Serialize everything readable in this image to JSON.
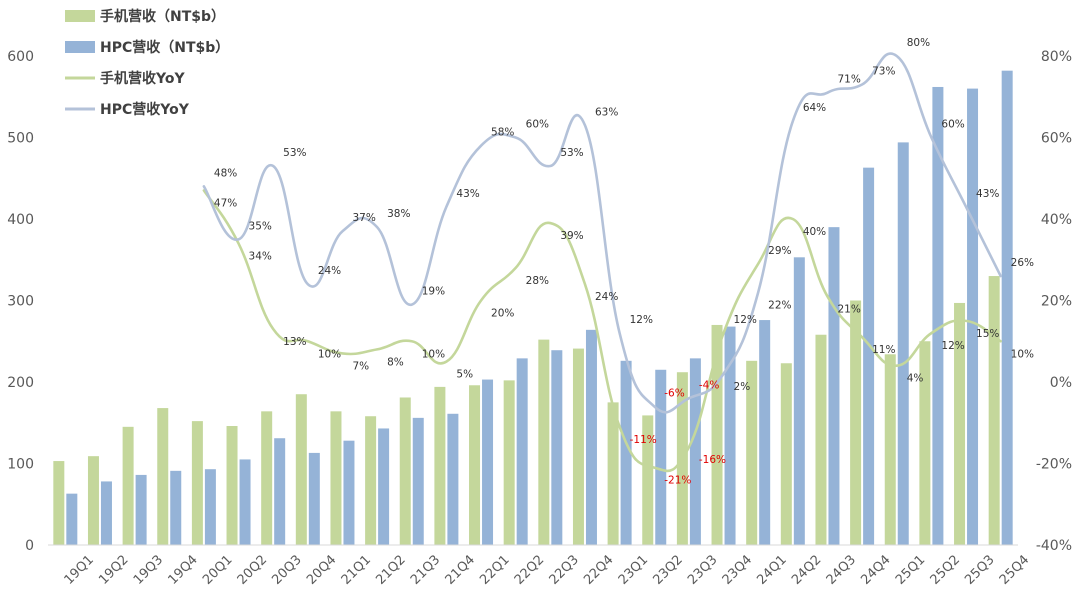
{
  "chart_data": {
    "type": "bar+line",
    "categories": [
      "19Q1",
      "19Q2",
      "19Q3",
      "19Q4",
      "20Q1",
      "20Q2",
      "20Q3",
      "20Q4",
      "21Q1",
      "21Q2",
      "21Q3",
      "21Q4",
      "22Q1",
      "22Q2",
      "22Q3",
      "22Q4",
      "23Q1",
      "23Q2",
      "23Q3",
      "23Q4",
      "24Q1",
      "24Q2",
      "24Q3",
      "24Q4",
      "25Q1",
      "25Q2",
      "25Q3",
      "25Q4"
    ],
    "bar_series": [
      {
        "name": "手机营收（NT$b）",
        "color": "#c4d79b",
        "values": [
          103,
          109,
          145,
          168,
          152,
          146,
          164,
          185,
          164,
          158,
          181,
          194,
          196,
          202,
          252,
          241,
          175,
          159,
          212,
          270,
          226,
          223,
          258,
          300,
          234,
          250,
          297,
          330
        ]
      },
      {
        "name": "HPC营收（NT$b）",
        "color": "#95b3d7",
        "values": [
          63,
          78,
          86,
          91,
          93,
          105,
          131,
          113,
          128,
          143,
          156,
          161,
          203,
          229,
          239,
          264,
          226,
          215,
          229,
          268,
          276,
          353,
          390,
          463,
          494,
          562,
          560,
          582
        ]
      }
    ],
    "line_series": [
      {
        "name": "手机营收YoY",
        "color": "#c4d79b",
        "start_index": 4,
        "values": [
          47,
          34,
          13,
          10,
          7,
          8,
          10,
          5,
          20,
          28,
          39,
          24,
          -11,
          -21,
          -16,
          12,
          29,
          40,
          21,
          11,
          4,
          12,
          15,
          10
        ],
        "labels": [
          "47%",
          "34%",
          "13%",
          "10%",
          "7%",
          "8%",
          "10%",
          "5%",
          "20%",
          "28%",
          "39%",
          "24%",
          "-11%",
          "-21%",
          "-16%",
          "12%",
          "29%",
          "40%",
          "21%",
          "11%",
          "4%",
          "12%",
          "15%",
          "10%"
        ]
      },
      {
        "name": "HPC营收YoY",
        "color": "#b4c2d9",
        "start_index": 4,
        "values": [
          48,
          35,
          53,
          24,
          37,
          38,
          19,
          43,
          58,
          60,
          53,
          63,
          12,
          -6,
          -4,
          2,
          22,
          64,
          71,
          73,
          80,
          60,
          43,
          26
        ],
        "labels": [
          "48%",
          "35%",
          "53%",
          "24%",
          "37%",
          "38%",
          "19%",
          "43%",
          "58%",
          "60%",
          "53%",
          "63%",
          "12%",
          "-6%",
          "-4%",
          "2%",
          "22%",
          "64%",
          "71%",
          "73%",
          "80%",
          "60%",
          "43%",
          "26%"
        ]
      }
    ],
    "y_left": {
      "min": 0,
      "max": 600,
      "ticks": [
        "0",
        "100",
        "200",
        "300",
        "400",
        "500",
        "600"
      ]
    },
    "y_right": {
      "min": -40,
      "max": 80,
      "ticks": [
        "-40%",
        "-20%",
        "0%",
        "20%",
        "40%",
        "60%",
        "80%"
      ]
    },
    "legend": [
      {
        "label": "手机营收（NT$b）",
        "kind": "bar",
        "color": "#c4d79b"
      },
      {
        "label": "HPC营收（NT$b）",
        "kind": "bar",
        "color": "#95b3d7"
      },
      {
        "label": "手机营收YoY",
        "kind": "line",
        "color": "#c4d79b"
      },
      {
        "label": "HPC营收YoY",
        "kind": "line",
        "color": "#b4c2d9"
      }
    ],
    "legend_position": "top-left",
    "negative_label_color": "#e00000"
  }
}
